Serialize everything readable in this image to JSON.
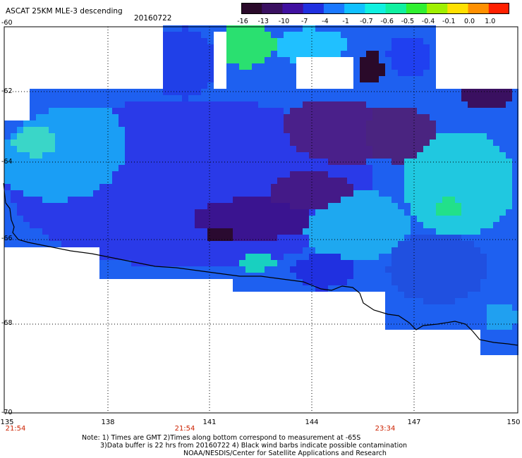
{
  "title": "ASCAT 25KM MLE-3 descending",
  "date": "20160722",
  "colorbar": {
    "labels": [
      "-16",
      "-13",
      "-10",
      "-7",
      "-4",
      "-1",
      "-0.7",
      "-0.6",
      "-0.5",
      "-0.4",
      "-0.1",
      "0.0",
      "1.0"
    ],
    "colors": [
      "#2a0a2a",
      "#3a1060",
      "#4010a0",
      "#2030e0",
      "#1a78ff",
      "#10c0ff",
      "#10f0e0",
      "#10f0a0",
      "#30f030",
      "#a0f000",
      "#ffe000",
      "#ff9000",
      "#ff2000"
    ]
  },
  "map": {
    "lat_labels": [
      "-60",
      "-62",
      "-64",
      "-66",
      "-68",
      "-70"
    ],
    "lon_labels": [
      "135",
      "138",
      "141",
      "144",
      "147",
      "150"
    ],
    "time_labels": [
      "21:54",
      "21:54",
      "23:34"
    ],
    "lon_range": [
      135,
      150
    ],
    "lat_range": [
      -70,
      -60
    ]
  },
  "notes": [
    "Note: 1) Times are GMT 2)Times along bottom correspond to measurement at -65S",
    "3)Data buffer is 22 hrs from 20160722 4) Black wind barbs indicate possible contamination",
    "NOAA/NESDIS/Center for Satellite Applications and Research"
  ]
}
